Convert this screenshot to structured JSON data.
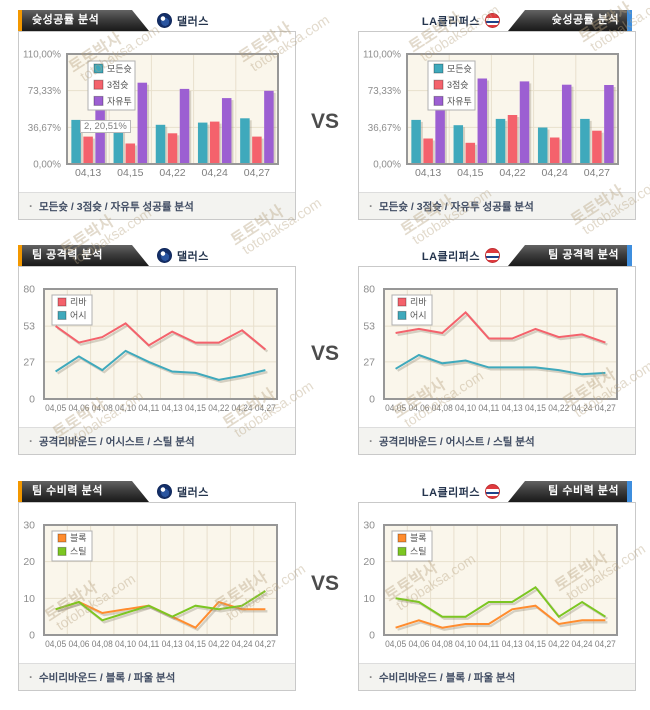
{
  "vs_label": "VS",
  "teams": {
    "left": "댈러스",
    "right": "LA클리퍼스"
  },
  "watermark": {
    "text1": "토토박사",
    "text2": "totobaksa.com"
  },
  "sections": [
    {
      "title": "슛성공률 분석",
      "caption": "모든슛 / 3점슛 / 자유투 성공률 분석"
    },
    {
      "title": "팀 공격력 분석",
      "caption": "공격리바운드 / 어시스트 / 스틸 분석"
    },
    {
      "title": "팀 수비력 분석",
      "caption": "수비리바운드 / 블록 / 파울 분석"
    }
  ],
  "tooltip": "2, 20,51%",
  "colors": {
    "teal": "#3FA9BC",
    "red": "#F4626C",
    "purple": "#9C5FD2",
    "orange": "#FF8C2E",
    "green": "#7CC622",
    "accent_orange": "#F39800",
    "accent_blue": "#3E8EDE"
  },
  "chart_data": [
    {
      "id": "shooting-dallas",
      "type": "bar",
      "team": "댈러스",
      "title": "슛성공률 분석",
      "categories": [
        "04,13",
        "04,15",
        "04,22",
        "04,24",
        "04,27"
      ],
      "series": [
        {
          "name": "모든슛",
          "color": "#3FA9BC",
          "values": [
            44.1,
            33.0,
            39.2,
            41.4,
            45.7
          ]
        },
        {
          "name": "3점슛",
          "color": "#F4626C",
          "values": [
            27.4,
            20.51,
            30.7,
            42.4,
            27.4
          ]
        },
        {
          "name": "자유투",
          "color": "#9C5FD2",
          "values": [
            57.8,
            81.3,
            75.1,
            65.9,
            73.2
          ]
        }
      ],
      "ylim": [
        0,
        110
      ],
      "yticks": [
        {
          "v": 0,
          "label": "0,00%"
        },
        {
          "v": 36.67,
          "label": "36,67%"
        },
        {
          "v": 73.33,
          "label": "73,33%"
        },
        {
          "v": 110,
          "label": "110,00%"
        }
      ]
    },
    {
      "id": "shooting-clippers",
      "type": "bar",
      "team": "LA클리퍼스",
      "title": "슛성공률 분석",
      "categories": [
        "04,13",
        "04,15",
        "04,22",
        "04,24",
        "04,27"
      ],
      "series": [
        {
          "name": "모든슛",
          "color": "#3FA9BC",
          "values": [
            44.1,
            38.8,
            45.1,
            36.5,
            45.1
          ]
        },
        {
          "name": "3점슛",
          "color": "#F4626C",
          "values": [
            25.5,
            21.2,
            49.0,
            26.5,
            33.3
          ]
        },
        {
          "name": "자유투",
          "color": "#9C5FD2",
          "values": [
            57.1,
            85.5,
            82.6,
            79.3,
            79.0
          ]
        }
      ],
      "ylim": [
        0,
        110
      ],
      "yticks": [
        {
          "v": 0,
          "label": "0,00%"
        },
        {
          "v": 36.67,
          "label": "36,67%"
        },
        {
          "v": 73.33,
          "label": "73,33%"
        },
        {
          "v": 110,
          "label": "110,00%"
        }
      ]
    },
    {
      "id": "offense-dallas",
      "type": "line",
      "team": "댈러스",
      "title": "팀 공격력 분석",
      "categories": [
        "04,05",
        "04,06",
        "04,08",
        "04,10",
        "04,11",
        "04,13",
        "04,15",
        "04,22",
        "04,24",
        "04,27"
      ],
      "series": [
        {
          "name": "리바",
          "color": "#F4626C",
          "values": [
            53,
            41,
            45,
            55,
            39,
            49,
            41,
            41,
            50,
            36
          ]
        },
        {
          "name": "어시",
          "color": "#3FA9BC",
          "values": [
            20,
            31,
            21,
            35,
            27,
            20,
            19,
            14,
            17,
            21
          ]
        }
      ],
      "ylim": [
        0,
        80
      ],
      "yticks": [
        {
          "v": 0,
          "label": "0"
        },
        {
          "v": 27,
          "label": "27"
        },
        {
          "v": 53,
          "label": "53"
        },
        {
          "v": 80,
          "label": "80"
        }
      ]
    },
    {
      "id": "offense-clippers",
      "type": "line",
      "team": "LA클리퍼스",
      "title": "팀 공격력 분석",
      "categories": [
        "04,05",
        "04,06",
        "04,08",
        "04,10",
        "04,11",
        "04,13",
        "04,15",
        "04,22",
        "04,24",
        "04,27"
      ],
      "series": [
        {
          "name": "리바",
          "color": "#F4626C",
          "values": [
            48,
            51,
            48,
            63,
            44,
            44,
            51,
            45,
            47,
            41
          ]
        },
        {
          "name": "어시",
          "color": "#3FA9BC",
          "values": [
            22,
            32,
            26,
            28,
            23,
            23,
            23,
            21,
            18,
            19
          ]
        }
      ],
      "ylim": [
        0,
        80
      ],
      "yticks": [
        {
          "v": 0,
          "label": "0"
        },
        {
          "v": 27,
          "label": "27"
        },
        {
          "v": 53,
          "label": "53"
        },
        {
          "v": 80,
          "label": "80"
        }
      ]
    },
    {
      "id": "defense-dallas",
      "type": "line",
      "team": "댈러스",
      "title": "팀 수비력 분석",
      "categories": [
        "04,05",
        "04,06",
        "04,08",
        "04,10",
        "04,11",
        "04,13",
        "04,15",
        "04,22",
        "04,24",
        "04,27"
      ],
      "series": [
        {
          "name": "블록",
          "color": "#FF8C2E",
          "values": [
            7,
            9,
            6,
            7,
            8,
            5,
            2,
            9,
            7,
            7
          ]
        },
        {
          "name": "스틸",
          "color": "#7CC622",
          "values": [
            7,
            9,
            4,
            6,
            8,
            5,
            8,
            7,
            8,
            12
          ]
        }
      ],
      "ylim": [
        0,
        30
      ],
      "yticks": [
        {
          "v": 0,
          "label": "0"
        },
        {
          "v": 10,
          "label": "10"
        },
        {
          "v": 20,
          "label": "20"
        },
        {
          "v": 30,
          "label": "30"
        }
      ]
    },
    {
      "id": "defense-clippers",
      "type": "line",
      "team": "LA클리퍼스",
      "title": "팀 수비력 분석",
      "categories": [
        "04,05",
        "04,06",
        "04,08",
        "04,10",
        "04,11",
        "04,13",
        "04,15",
        "04,22",
        "04,24",
        "04,27"
      ],
      "series": [
        {
          "name": "블록",
          "color": "#FF8C2E",
          "values": [
            2,
            4,
            2,
            3,
            3,
            7,
            8,
            3,
            4,
            4
          ]
        },
        {
          "name": "스틸",
          "color": "#7CC622",
          "values": [
            10,
            9,
            5,
            5,
            9,
            9,
            13,
            5,
            9,
            5
          ]
        }
      ],
      "ylim": [
        0,
        30
      ],
      "yticks": [
        {
          "v": 0,
          "label": "0"
        },
        {
          "v": 10,
          "label": "10"
        },
        {
          "v": 20,
          "label": "20"
        },
        {
          "v": 30,
          "label": "30"
        }
      ]
    }
  ]
}
